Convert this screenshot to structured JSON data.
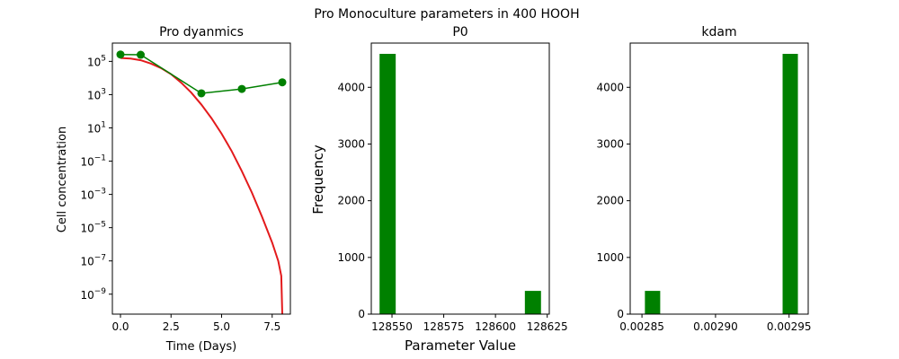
{
  "suptitle": "Pro Monoculture parameters in 400 HOOH",
  "shared_xlabel": "Parameter Value",
  "chart_data": [
    {
      "type": "line",
      "title": "Pro dyanmics",
      "xlabel": "Time (Days)",
      "ylabel": "Cell concentration",
      "yscale": "log",
      "xlim": [
        -0.4,
        8.4
      ],
      "ylim_log10": [
        -10.2,
        6.1
      ],
      "xticks": [
        0.0,
        2.5,
        5.0,
        7.5
      ],
      "xtick_labels": [
        "0.0",
        "2.5",
        "5.0",
        "7.5"
      ],
      "ytick_exponents": [
        5,
        3,
        1,
        -1,
        -3,
        -5,
        -7,
        -9
      ],
      "ytick_base": "10",
      "ytick_exponent_labels": [
        "5",
        "3",
        "1",
        "−1",
        "−3",
        "−5",
        "−7",
        "−9"
      ],
      "series": [
        {
          "kind": "observed",
          "color": "#008000",
          "marker": "circle",
          "x": [
            0,
            1,
            4,
            6,
            8
          ],
          "y": [
            260000,
            250000,
            1200,
            2200,
            5500
          ]
        },
        {
          "kind": "model",
          "color": "#e31a1c",
          "x": [
            0,
            0.5,
            1,
            1.5,
            2,
            2.5,
            3,
            3.5,
            4,
            4.5,
            5,
            5.5,
            6,
            6.5,
            7,
            7.5,
            7.8,
            7.95,
            8.0
          ],
          "y_log10": [
            5.2,
            5.17,
            5.07,
            4.87,
            4.6,
            4.23,
            3.72,
            3.12,
            2.4,
            1.58,
            0.65,
            -0.4,
            -1.6,
            -2.9,
            -4.35,
            -5.9,
            -7.0,
            -7.9,
            -10.2
          ]
        }
      ]
    },
    {
      "type": "bar",
      "title": "P0",
      "ylabel": "Frequency",
      "xlim": [
        128540,
        128626
      ],
      "ylim": [
        0,
        4780
      ],
      "xticks": [
        128550,
        128575,
        128600,
        128625
      ],
      "xtick_labels": [
        "128550",
        "128575",
        "128600",
        "128625"
      ],
      "yticks": [
        0,
        1000,
        2000,
        3000,
        4000
      ],
      "ytick_labels": [
        "0",
        "1000",
        "2000",
        "3000",
        "4000"
      ],
      "color": "#008000",
      "bins": [
        {
          "start": 128544.0,
          "end": 128551.8,
          "count": 4590
        },
        {
          "start": 128551.8,
          "end": 128559.6,
          "count": 0
        },
        {
          "start": 128559.6,
          "end": 128567.4,
          "count": 0
        },
        {
          "start": 128567.4,
          "end": 128575.2,
          "count": 0
        },
        {
          "start": 128575.2,
          "end": 128583.0,
          "count": 0
        },
        {
          "start": 128583.0,
          "end": 128590.8,
          "count": 0
        },
        {
          "start": 128590.8,
          "end": 128598.6,
          "count": 0
        },
        {
          "start": 128598.6,
          "end": 128606.4,
          "count": 0
        },
        {
          "start": 128606.4,
          "end": 128614.2,
          "count": 0
        },
        {
          "start": 128614.2,
          "end": 128622.0,
          "count": 410
        }
      ]
    },
    {
      "type": "bar",
      "title": "kdam",
      "xlim": [
        0.002842,
        0.002963
      ],
      "ylim": [
        0,
        4780
      ],
      "xticks": [
        0.00285,
        0.0029,
        0.00295
      ],
      "xtick_labels": [
        "0.00285",
        "0.00290",
        "0.00295"
      ],
      "yticks": [
        0,
        1000,
        2000,
        3000,
        4000
      ],
      "ytick_labels": [
        "0",
        "1000",
        "2000",
        "3000",
        "4000"
      ],
      "color": "#008000",
      "bins": [
        {
          "start": 0.002852,
          "end": 0.0028624,
          "count": 410
        },
        {
          "start": 0.0028624,
          "end": 0.0028728,
          "count": 0
        },
        {
          "start": 0.0028728,
          "end": 0.0028832,
          "count": 0
        },
        {
          "start": 0.0028832,
          "end": 0.0028936,
          "count": 0
        },
        {
          "start": 0.0028936,
          "end": 0.002904,
          "count": 0
        },
        {
          "start": 0.002904,
          "end": 0.0029144,
          "count": 0
        },
        {
          "start": 0.0029144,
          "end": 0.0029248,
          "count": 0
        },
        {
          "start": 0.0029248,
          "end": 0.0029352,
          "count": 0
        },
        {
          "start": 0.0029352,
          "end": 0.0029456,
          "count": 0
        },
        {
          "start": 0.0029456,
          "end": 0.002956,
          "count": 4590
        }
      ]
    }
  ]
}
